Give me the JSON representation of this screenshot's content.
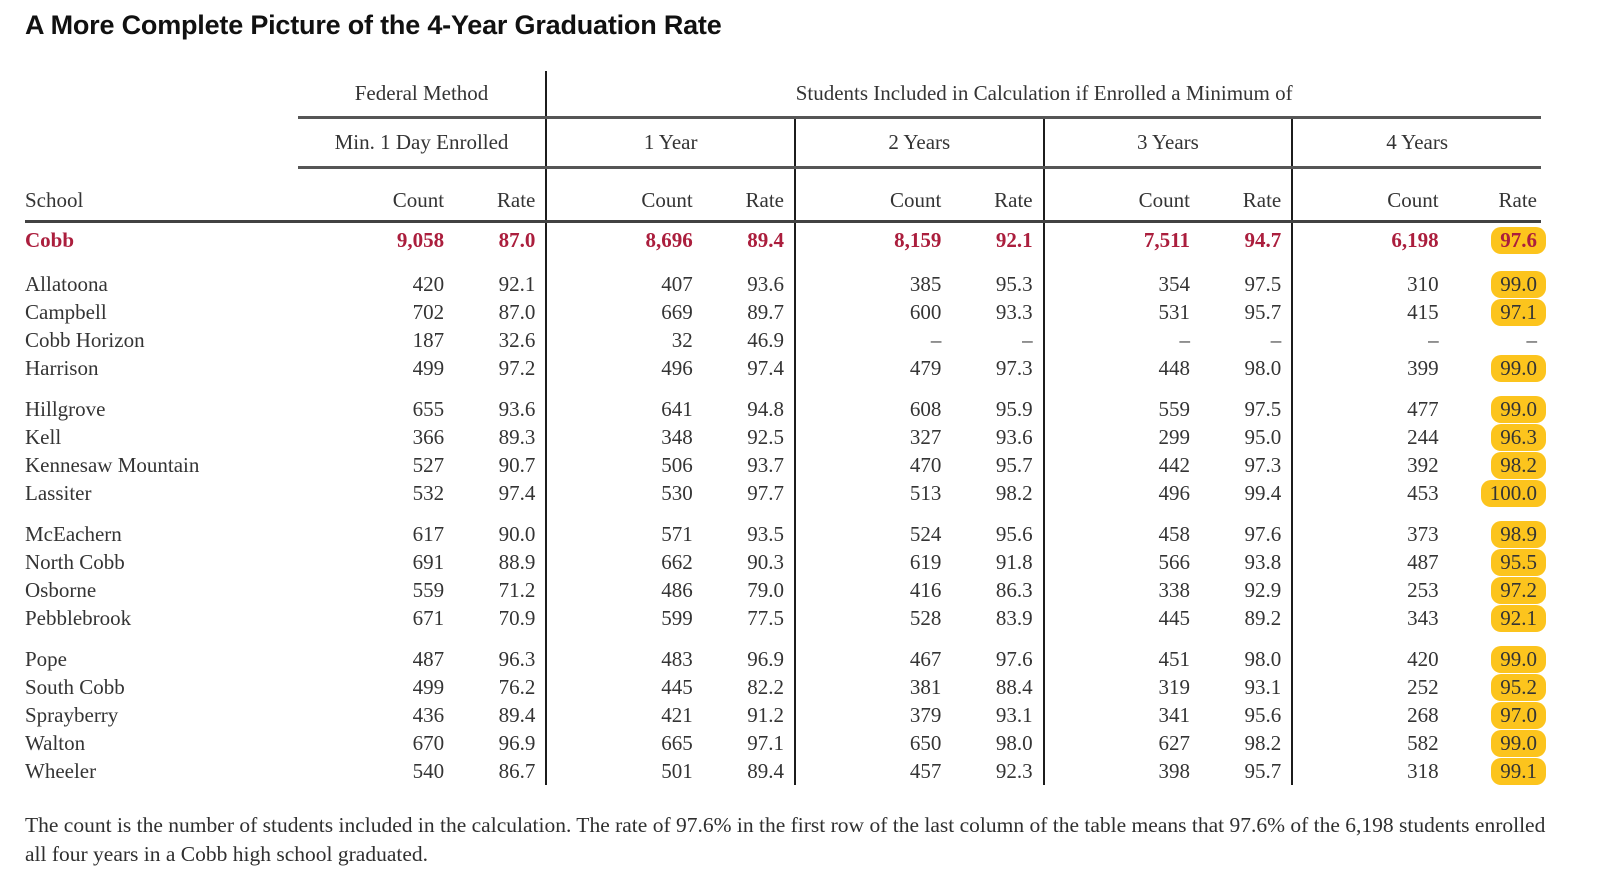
{
  "title": "A More Complete Picture of the 4-Year Graduation Rate",
  "colors": {
    "district_crimson": "#ab1e3d",
    "highlight_gold": "#fcc41d"
  },
  "table": {
    "school_header": "School",
    "federal_header": "Federal Method",
    "included_header": "Students Included in Calculation if Enrolled a Minimum of",
    "period_headers": [
      "Min. 1 Day Enrolled",
      "1 Year",
      "2 Years",
      "3 Years",
      "4 Years"
    ],
    "count_label": "Count",
    "rate_label": "Rate",
    "row_groups": [
      [
        {
          "school": "Cobb",
          "district": true,
          "highlight_last": true,
          "values": [
            "9,058",
            "87.0",
            "8,696",
            "89.4",
            "8,159",
            "92.1",
            "7,511",
            "94.7",
            "6,198",
            "97.6"
          ]
        }
      ],
      [
        {
          "school": "Allatoona",
          "highlight_last": true,
          "values": [
            "420",
            "92.1",
            "407",
            "93.6",
            "385",
            "95.3",
            "354",
            "97.5",
            "310",
            "99.0"
          ]
        },
        {
          "school": "Campbell",
          "highlight_last": true,
          "values": [
            "702",
            "87.0",
            "669",
            "89.7",
            "600",
            "93.3",
            "531",
            "95.7",
            "415",
            "97.1"
          ]
        },
        {
          "school": "Cobb Horizon",
          "highlight_last": false,
          "values": [
            "187",
            "32.6",
            "32",
            "46.9",
            "–",
            "–",
            "–",
            "–",
            "–",
            "–"
          ]
        },
        {
          "school": "Harrison",
          "highlight_last": true,
          "values": [
            "499",
            "97.2",
            "496",
            "97.4",
            "479",
            "97.3",
            "448",
            "98.0",
            "399",
            "99.0"
          ]
        }
      ],
      [
        {
          "school": "Hillgrove",
          "highlight_last": true,
          "values": [
            "655",
            "93.6",
            "641",
            "94.8",
            "608",
            "95.9",
            "559",
            "97.5",
            "477",
            "99.0"
          ]
        },
        {
          "school": "Kell",
          "highlight_last": true,
          "values": [
            "366",
            "89.3",
            "348",
            "92.5",
            "327",
            "93.6",
            "299",
            "95.0",
            "244",
            "96.3"
          ]
        },
        {
          "school": "Kennesaw Mountain",
          "highlight_last": true,
          "values": [
            "527",
            "90.7",
            "506",
            "93.7",
            "470",
            "95.7",
            "442",
            "97.3",
            "392",
            "98.2"
          ]
        },
        {
          "school": "Lassiter",
          "highlight_last": true,
          "values": [
            "532",
            "97.4",
            "530",
            "97.7",
            "513",
            "98.2",
            "496",
            "99.4",
            "453",
            "100.0"
          ]
        }
      ],
      [
        {
          "school": "McEachern",
          "highlight_last": true,
          "values": [
            "617",
            "90.0",
            "571",
            "93.5",
            "524",
            "95.6",
            "458",
            "97.6",
            "373",
            "98.9"
          ]
        },
        {
          "school": "North Cobb",
          "highlight_last": true,
          "values": [
            "691",
            "88.9",
            "662",
            "90.3",
            "619",
            "91.8",
            "566",
            "93.8",
            "487",
            "95.5"
          ]
        },
        {
          "school": "Osborne",
          "highlight_last": true,
          "values": [
            "559",
            "71.2",
            "486",
            "79.0",
            "416",
            "86.3",
            "338",
            "92.9",
            "253",
            "97.2"
          ]
        },
        {
          "school": "Pebblebrook",
          "highlight_last": true,
          "values": [
            "671",
            "70.9",
            "599",
            "77.5",
            "528",
            "83.9",
            "445",
            "89.2",
            "343",
            "92.1"
          ]
        }
      ],
      [
        {
          "school": "Pope",
          "highlight_last": true,
          "values": [
            "487",
            "96.3",
            "483",
            "96.9",
            "467",
            "97.6",
            "451",
            "98.0",
            "420",
            "99.0"
          ]
        },
        {
          "school": "South Cobb",
          "highlight_last": true,
          "values": [
            "499",
            "76.2",
            "445",
            "82.2",
            "381",
            "88.4",
            "319",
            "93.1",
            "252",
            "95.2"
          ]
        },
        {
          "school": "Sprayberry",
          "highlight_last": true,
          "values": [
            "436",
            "89.4",
            "421",
            "91.2",
            "379",
            "93.1",
            "341",
            "95.6",
            "268",
            "97.0"
          ]
        },
        {
          "school": "Walton",
          "highlight_last": true,
          "values": [
            "670",
            "96.9",
            "665",
            "97.1",
            "650",
            "98.0",
            "627",
            "98.2",
            "582",
            "99.0"
          ]
        },
        {
          "school": "Wheeler",
          "highlight_last": true,
          "values": [
            "540",
            "86.7",
            "501",
            "89.4",
            "457",
            "92.3",
            "398",
            "95.7",
            "318",
            "99.1"
          ]
        }
      ]
    ]
  },
  "footnote": "The count is the number of students included in the calculation. The rate of 97.6% in the first row of the last column of the table means that 97.6% of the 6,198 students enrolled all four years in a Cobb high school graduated.",
  "chart_data": {
    "type": "table",
    "title": "A More Complete Picture of the 4-Year Graduation Rate",
    "columns": [
      "School",
      "Min. 1 Day Enrolled — Count",
      "Min. 1 Day Enrolled — Rate",
      "1 Year — Count",
      "1 Year — Rate",
      "2 Years — Count",
      "2 Years — Rate",
      "3 Years — Count",
      "3 Years — Rate",
      "4 Years — Count",
      "4 Years — Rate"
    ],
    "rows": [
      [
        "Cobb",
        9058,
        87.0,
        8696,
        89.4,
        8159,
        92.1,
        7511,
        94.7,
        6198,
        97.6
      ],
      [
        "Allatoona",
        420,
        92.1,
        407,
        93.6,
        385,
        95.3,
        354,
        97.5,
        310,
        99.0
      ],
      [
        "Campbell",
        702,
        87.0,
        669,
        89.7,
        600,
        93.3,
        531,
        95.7,
        415,
        97.1
      ],
      [
        "Cobb Horizon",
        187,
        32.6,
        32,
        46.9,
        null,
        null,
        null,
        null,
        null,
        null
      ],
      [
        "Harrison",
        499,
        97.2,
        496,
        97.4,
        479,
        97.3,
        448,
        98.0,
        399,
        99.0
      ],
      [
        "Hillgrove",
        655,
        93.6,
        641,
        94.8,
        608,
        95.9,
        559,
        97.5,
        477,
        99.0
      ],
      [
        "Kell",
        366,
        89.3,
        348,
        92.5,
        327,
        93.6,
        299,
        95.0,
        244,
        96.3
      ],
      [
        "Kennesaw Mountain",
        527,
        90.7,
        506,
        93.7,
        470,
        95.7,
        442,
        97.3,
        392,
        98.2
      ],
      [
        "Lassiter",
        532,
        97.4,
        530,
        97.7,
        513,
        98.2,
        496,
        99.4,
        453,
        100.0
      ],
      [
        "McEachern",
        617,
        90.0,
        571,
        93.5,
        524,
        95.6,
        458,
        97.6,
        373,
        98.9
      ],
      [
        "North Cobb",
        691,
        88.9,
        662,
        90.3,
        619,
        91.8,
        566,
        93.8,
        487,
        95.5
      ],
      [
        "Osborne",
        559,
        71.2,
        486,
        79.0,
        416,
        86.3,
        338,
        92.9,
        253,
        97.2
      ],
      [
        "Pebblebrook",
        671,
        70.9,
        599,
        77.5,
        528,
        83.9,
        445,
        89.2,
        343,
        92.1
      ],
      [
        "Pope",
        487,
        96.3,
        483,
        96.9,
        467,
        97.6,
        451,
        98.0,
        420,
        99.0
      ],
      [
        "South Cobb",
        499,
        76.2,
        445,
        82.2,
        381,
        88.4,
        319,
        93.1,
        252,
        95.2
      ],
      [
        "Sprayberry",
        436,
        89.4,
        421,
        91.2,
        379,
        93.1,
        341,
        95.6,
        268,
        97.0
      ],
      [
        "Walton",
        670,
        96.9,
        665,
        97.1,
        650,
        98.0,
        627,
        98.2,
        582,
        99.0
      ],
      [
        "Wheeler",
        540,
        86.7,
        501,
        89.4,
        457,
        92.3,
        398,
        95.7,
        318,
        99.1
      ]
    ],
    "highlighted_column": "4 Years — Rate",
    "notes": "Last-column rates carry a gold highlighter pill except the missing Cobb Horizon value; the Cobb district row is bold crimson."
  }
}
